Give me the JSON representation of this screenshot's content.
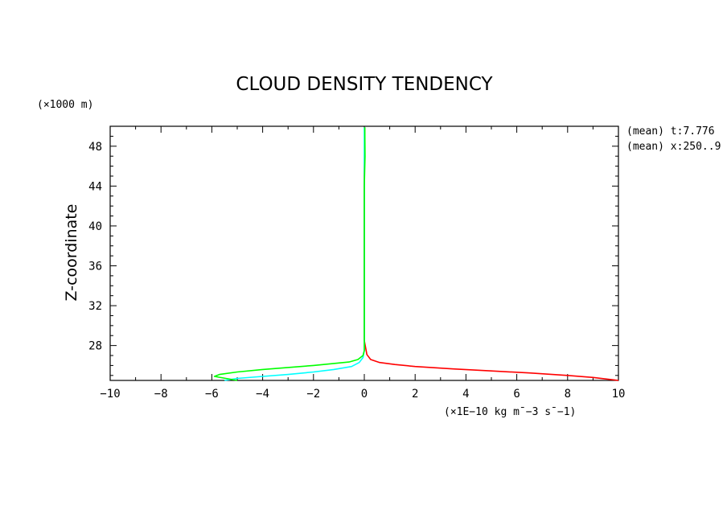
{
  "figure": {
    "title": "CLOUD DENSITY TENDENCY",
    "y_units": "(×1000 m)",
    "x_units": "(×1E−10 kg m¯−3 s¯−1)",
    "annotations": [
      "(mean) t:7.776",
      "(mean) x:250..9"
    ]
  },
  "colors": {
    "background": "#ffffff",
    "axes": "#000000",
    "series": [
      "#ff0000",
      "#00ffff",
      "#00ff00"
    ]
  },
  "chart_data": {
    "type": "line",
    "title": "CLOUD DENSITY TENDENCY",
    "xlabel": "",
    "ylabel": "Z-coordinate",
    "xlim": [
      -10,
      10
    ],
    "ylim": [
      24.5,
      50
    ],
    "x_ticks": [
      -10,
      -8,
      -6,
      -4,
      -2,
      0,
      2,
      4,
      6,
      8,
      10
    ],
    "x_tick_labels": [
      "−10",
      "−8",
      "−6",
      "−4",
      "−2",
      "0",
      "2",
      "4",
      "6",
      "8",
      "10"
    ],
    "y_ticks": [
      28,
      32,
      36,
      40,
      44,
      48
    ],
    "y_tick_labels": [
      "28",
      "32",
      "36",
      "40",
      "44",
      "48"
    ],
    "grid": false,
    "legend": "none",
    "series": [
      {
        "color": "#ff0000",
        "points": [
          [
            0.02,
            49.9
          ],
          [
            0.0,
            45
          ],
          [
            0.0,
            40
          ],
          [
            0.0,
            35
          ],
          [
            0.0,
            30
          ],
          [
            0.0,
            28.5
          ],
          [
            0.05,
            27.8
          ],
          [
            0.1,
            27.1
          ],
          [
            0.25,
            26.6
          ],
          [
            0.6,
            26.3
          ],
          [
            1.2,
            26.1
          ],
          [
            2.0,
            25.9
          ],
          [
            3.5,
            25.65
          ],
          [
            5.0,
            25.45
          ],
          [
            6.5,
            25.25
          ],
          [
            8.0,
            25.0
          ],
          [
            9.0,
            24.8
          ],
          [
            10.0,
            24.5
          ]
        ]
      },
      {
        "color": "#00ffff",
        "points": [
          [
            0.0,
            49.9
          ],
          [
            0.0,
            46
          ],
          [
            0.0,
            44
          ],
          [
            0.0,
            42
          ],
          [
            0.0,
            38
          ],
          [
            0.0,
            34
          ],
          [
            0.0,
            30
          ],
          [
            0.0,
            27.5
          ],
          [
            -0.05,
            26.8
          ],
          [
            -0.2,
            26.3
          ],
          [
            -0.5,
            25.9
          ],
          [
            -1.2,
            25.6
          ],
          [
            -2.0,
            25.35
          ],
          [
            -3.0,
            25.1
          ],
          [
            -4.0,
            24.9
          ],
          [
            -5.0,
            24.7
          ],
          [
            -5.5,
            24.5
          ]
        ]
      },
      {
        "color": "#00ff00",
        "points": [
          [
            0.02,
            49.9
          ],
          [
            0.03,
            47
          ],
          [
            0.0,
            44
          ],
          [
            0.0,
            40
          ],
          [
            0.0,
            35
          ],
          [
            0.0,
            30
          ],
          [
            0.0,
            27.5
          ],
          [
            -0.05,
            27.0
          ],
          [
            -0.25,
            26.6
          ],
          [
            -0.6,
            26.35
          ],
          [
            -1.2,
            26.2
          ],
          [
            -2.0,
            26.0
          ],
          [
            -3.0,
            25.8
          ],
          [
            -4.0,
            25.6
          ],
          [
            -5.0,
            25.35
          ],
          [
            -5.7,
            25.1
          ],
          [
            -5.9,
            24.9
          ],
          [
            -5.0,
            24.5
          ]
        ]
      }
    ]
  }
}
